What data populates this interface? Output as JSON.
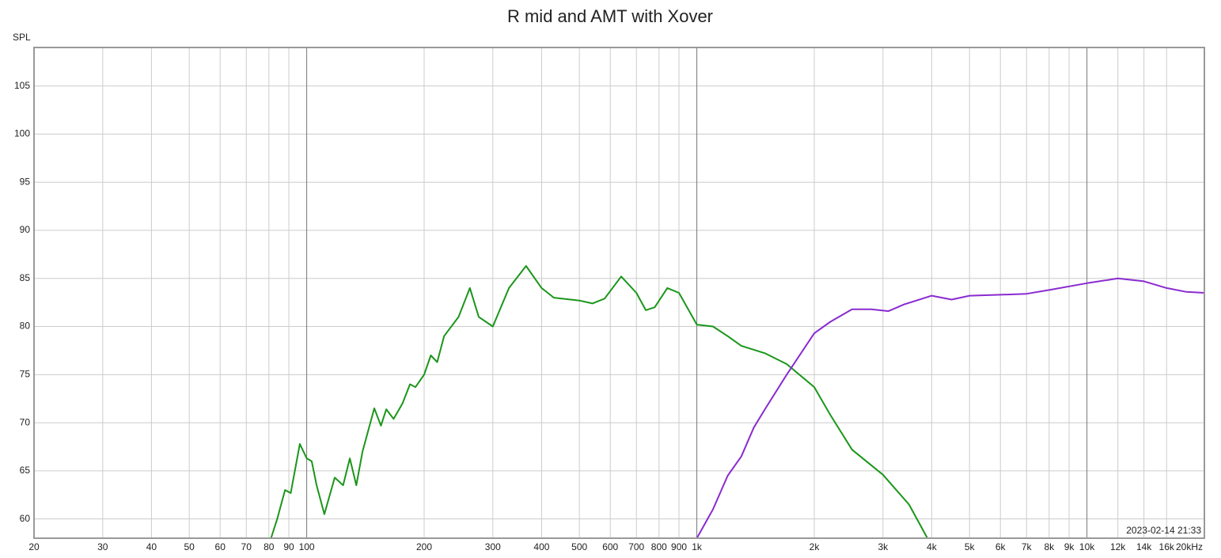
{
  "chart_data": {
    "type": "line",
    "title": "R mid and AMT with Xover",
    "y_label": "SPL",
    "annotation": "2023-02-14 21:33",
    "xscale": "log",
    "grid": true,
    "xlim": [
      20,
      20000
    ],
    "ylim": [
      58,
      109
    ],
    "xticks": [
      20,
      30,
      40,
      50,
      60,
      70,
      80,
      90,
      100,
      200,
      300,
      400,
      500,
      600,
      700,
      800,
      900,
      {
        "value": 1000,
        "label": "1k"
      },
      {
        "value": 2000,
        "label": "2k"
      },
      {
        "value": 3000,
        "label": "3k"
      },
      {
        "value": 4000,
        "label": "4k"
      },
      {
        "value": 5000,
        "label": "5k"
      },
      {
        "value": 6000,
        "label": "6k"
      },
      {
        "value": 7000,
        "label": "7k"
      },
      {
        "value": 8000,
        "label": "8k"
      },
      {
        "value": 9000,
        "label": "9k"
      },
      {
        "value": 10000,
        "label": "10k"
      },
      {
        "value": 12000,
        "label": "12k"
      },
      {
        "value": 14000,
        "label": "14k"
      },
      {
        "value": 16000,
        "label": "16k"
      },
      {
        "value": 20000,
        "label": "20kHz"
      }
    ],
    "yticks": [
      60,
      65,
      70,
      75,
      80,
      85,
      90,
      95,
      100,
      105
    ],
    "series": [
      {
        "color": "#1a961a",
        "x": [
          81,
          84,
          88,
          91,
          96,
          100,
          103,
          106,
          111,
          118,
          124,
          129,
          134,
          139,
          149,
          155,
          160,
          167,
          176,
          184,
          190,
          200,
          208,
          216,
          225,
          245,
          262,
          276,
          300,
          330,
          365,
          400,
          430,
          500,
          540,
          580,
          640,
          700,
          740,
          780,
          840,
          900,
          1000,
          1100,
          1200,
          1300,
          1500,
          1700,
          2000,
          2200,
          2500,
          3000,
          3500,
          3900
        ],
        "values": [
          58,
          60,
          63,
          62.7,
          67.8,
          66.3,
          66,
          63.5,
          60.5,
          64.3,
          63.5,
          66.3,
          63.5,
          67,
          71.5,
          69.7,
          71.4,
          70.4,
          72,
          74,
          73.7,
          75,
          77,
          76.3,
          79,
          81,
          84,
          81,
          80,
          84,
          86.3,
          84,
          83,
          82.7,
          82.4,
          82.9,
          85.2,
          83.5,
          81.7,
          82,
          84,
          83.5,
          80.2,
          80,
          79,
          78,
          77.2,
          76.1,
          73.7,
          70.8,
          67.2,
          64.6,
          61.5,
          58
        ]
      },
      {
        "color": "#8a2bd0",
        "x": [
          1000,
          1100,
          1200,
          1300,
          1400,
          1500,
          1700,
          2000,
          2200,
          2500,
          2800,
          3100,
          3400,
          4000,
          4500,
          5000,
          6000,
          7000,
          8000,
          10000,
          12000,
          14000,
          16000,
          18000,
          20000
        ],
        "values": [
          58,
          61,
          64.5,
          66.5,
          69.5,
          71.5,
          75,
          79.3,
          80.5,
          81.8,
          81.8,
          81.6,
          82.3,
          83.2,
          82.8,
          83.2,
          83.3,
          83.4,
          83.8,
          84.5,
          85,
          84.7,
          84,
          83.6,
          83.5
        ]
      }
    ]
  }
}
